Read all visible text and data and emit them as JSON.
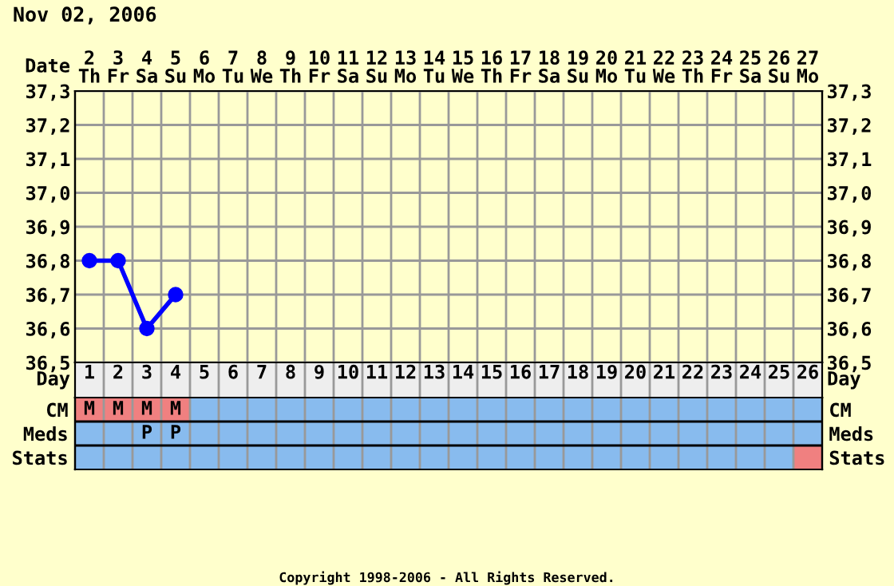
{
  "chart_data": [
    {
      "type": "line",
      "title": "Nov 02, 2006",
      "xlabel": "Date",
      "categories": [
        "2\nTh",
        "3\nFr",
        "4\nSa",
        "5\nSu",
        "6\nMo",
        "7\nTu",
        "8\nWe",
        "9\nTh",
        "10\nFr",
        "11\nSa",
        "12\nSu",
        "13\nMo",
        "14\nTu",
        "15\nWe",
        "16\nTh",
        "17\nFr",
        "18\nSa",
        "19\nSu",
        "20\nMo",
        "21\nTu",
        "22\nWe",
        "23\nTh",
        "24\nFr",
        "25\nSa",
        "26\nSu",
        "27\nMo"
      ],
      "series": [
        {
          "color": "#0000ff",
          "values": [
            36.8,
            36.8,
            36.6,
            36.7,
            null,
            null,
            null,
            null,
            null,
            null,
            null,
            null,
            null,
            null,
            null,
            null,
            null,
            null,
            null,
            null,
            null,
            null,
            null,
            null,
            null,
            null
          ]
        }
      ],
      "ylim": [
        36.5,
        37.3
      ],
      "yticks": [
        {
          "value": 36.5,
          "label": "36,5"
        },
        {
          "value": 36.6,
          "label": "36,6"
        },
        {
          "value": 36.7,
          "label": "36,7"
        },
        {
          "value": 36.8,
          "label": "36,8"
        },
        {
          "value": 36.9,
          "label": "36,9"
        },
        {
          "value": 37.0,
          "label": "37,0"
        },
        {
          "value": 37.1,
          "label": "37,1"
        },
        {
          "value": 37.2,
          "label": "37,2"
        },
        {
          "value": 37.3,
          "label": "37,3"
        }
      ],
      "y2lim": [
        36.5,
        37.3
      ],
      "y2ticks": [
        {
          "value": 36.5,
          "label": "36,5"
        },
        {
          "value": 36.6,
          "label": "36,6"
        },
        {
          "value": 36.7,
          "label": "36,7"
        },
        {
          "value": 36.8,
          "label": "36,8"
        },
        {
          "value": 36.9,
          "label": "36,9"
        },
        {
          "value": 37.0,
          "label": "37,0"
        },
        {
          "value": 37.1,
          "label": "37,1"
        },
        {
          "value": 37.2,
          "label": "37,2"
        },
        {
          "value": 37.3,
          "label": "37,3"
        }
      ],
      "grid": true,
      "marker": "circle",
      "line_style": "solid"
    },
    {
      "type": "heatmap",
      "xlabel": "Day",
      "categories": [
        "1",
        "2",
        "3",
        "4",
        "5",
        "6",
        "7",
        "8",
        "9",
        "10",
        "11",
        "12",
        "13",
        "14",
        "15",
        "16",
        "17",
        "18",
        "19",
        "20",
        "21",
        "22",
        "23",
        "24",
        "25",
        "26"
      ],
      "y_categories": [
        "CM",
        "Meds",
        "Stats"
      ],
      "y2_categories": [
        "CM",
        "Meds",
        "Stats"
      ],
      "colors": [
        [
          "#f08080",
          "#f08080",
          "#f08080",
          "#f08080",
          "#88bbee",
          "#88bbee",
          "#88bbee",
          "#88bbee",
          "#88bbee",
          "#88bbee",
          "#88bbee",
          "#88bbee",
          "#88bbee",
          "#88bbee",
          "#88bbee",
          "#88bbee",
          "#88bbee",
          "#88bbee",
          "#88bbee",
          "#88bbee",
          "#88bbee",
          "#88bbee",
          "#88bbee",
          "#88bbee",
          "#88bbee",
          "#88bbee"
        ],
        [
          "#88bbee",
          "#88bbee",
          "#88bbee",
          "#88bbee",
          "#88bbee",
          "#88bbee",
          "#88bbee",
          "#88bbee",
          "#88bbee",
          "#88bbee",
          "#88bbee",
          "#88bbee",
          "#88bbee",
          "#88bbee",
          "#88bbee",
          "#88bbee",
          "#88bbee",
          "#88bbee",
          "#88bbee",
          "#88bbee",
          "#88bbee",
          "#88bbee",
          "#88bbee",
          "#88bbee",
          "#88bbee",
          "#88bbee"
        ],
        [
          "#88bbee",
          "#88bbee",
          "#88bbee",
          "#88bbee",
          "#88bbee",
          "#88bbee",
          "#88bbee",
          "#88bbee",
          "#88bbee",
          "#88bbee",
          "#88bbee",
          "#88bbee",
          "#88bbee",
          "#88bbee",
          "#88bbee",
          "#88bbee",
          "#88bbee",
          "#88bbee",
          "#88bbee",
          "#88bbee",
          "#88bbee",
          "#88bbee",
          "#88bbee",
          "#88bbee",
          "#88bbee",
          "#f08080"
        ]
      ],
      "cells": [
        [
          null,
          null,
          null,
          null,
          null,
          null,
          null,
          null,
          null,
          null,
          null,
          null,
          null,
          null,
          null,
          null,
          null,
          null,
          null,
          null,
          null,
          null,
          null,
          null,
          null,
          null
        ],
        [
          null,
          null,
          null,
          null,
          null,
          null,
          null,
          null,
          null,
          null,
          null,
          null,
          null,
          null,
          null,
          null,
          null,
          null,
          null,
          null,
          null,
          null,
          null,
          null,
          null,
          null
        ],
        [
          null,
          null,
          null,
          null,
          null,
          null,
          null,
          null,
          null,
          null,
          null,
          null,
          null,
          null,
          null,
          null,
          null,
          null,
          null,
          null,
          null,
          null,
          null,
          null,
          null,
          null
        ]
      ],
      "cell_labels": [
        [
          "M",
          "M",
          "M",
          "M",
          null,
          null,
          null,
          null,
          null,
          null,
          null,
          null,
          null,
          null,
          null,
          null,
          null,
          null,
          null,
          null,
          null,
          null,
          null,
          null,
          null,
          null
        ],
        [
          null,
          null,
          "P",
          "P",
          null,
          null,
          null,
          null,
          null,
          null,
          null,
          null,
          null,
          null,
          null,
          null,
          null,
          null,
          null,
          null,
          null,
          null,
          null,
          null,
          null,
          null
        ],
        [
          null,
          null,
          null,
          null,
          null,
          null,
          null,
          null,
          null,
          null,
          null,
          null,
          null,
          null,
          null,
          null,
          null,
          null,
          null,
          null,
          null,
          null,
          null,
          null,
          null,
          null
        ]
      ],
      "annotations": [
        "Copyright 1998-2006 - All Rights Reserved."
      ]
    }
  ]
}
